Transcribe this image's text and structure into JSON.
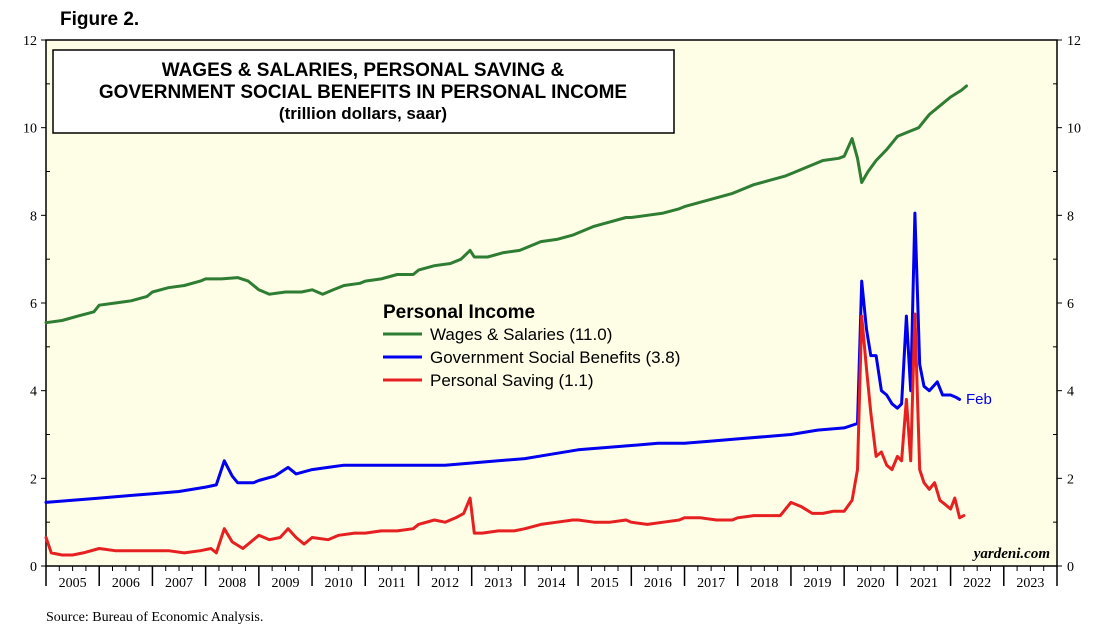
{
  "figure_label": "Figure 2.",
  "source": "Source: Bureau of Economic Analysis.",
  "watermark": "yardeni.com",
  "chart_data": {
    "type": "line",
    "title_lines": [
      "WAGES & SALARIES, PERSONAL SAVING &",
      "GOVERNMENT SOCIAL BENEFITS IN PERSONAL INCOME"
    ],
    "subtitle": "(trillion dollars, saar)",
    "legend_title": "Personal Income",
    "legend_position": "center",
    "grid": false,
    "background": "#fefde6",
    "xlim": [
      2005.0,
      2024.0
    ],
    "ylim": [
      0,
      12
    ],
    "y_ticks": [
      0,
      2,
      4,
      6,
      8,
      10,
      12
    ],
    "y_tick_labels": [
      "0",
      "2",
      "4",
      "6",
      "8",
      "10",
      "12"
    ],
    "x_year_labels": [
      "2005",
      "2006",
      "2007",
      "2008",
      "2009",
      "2010",
      "2011",
      "2012",
      "2013",
      "2014",
      "2015",
      "2016",
      "2017",
      "2018",
      "2019",
      "2020",
      "2021",
      "2022",
      "2023"
    ],
    "end_annotation": "Feb",
    "series": [
      {
        "name": "Wages & Salaries (11.0)",
        "color": "#2e7d32",
        "points": [
          [
            2005.0,
            5.55
          ],
          [
            2005.3,
            5.6
          ],
          [
            2005.6,
            5.7
          ],
          [
            2005.9,
            5.8
          ],
          [
            2006.0,
            5.95
          ],
          [
            2006.3,
            6.0
          ],
          [
            2006.6,
            6.05
          ],
          [
            2006.9,
            6.15
          ],
          [
            2007.0,
            6.25
          ],
          [
            2007.3,
            6.35
          ],
          [
            2007.6,
            6.4
          ],
          [
            2007.9,
            6.5
          ],
          [
            2008.0,
            6.55
          ],
          [
            2008.3,
            6.55
          ],
          [
            2008.6,
            6.58
          ],
          [
            2008.8,
            6.5
          ],
          [
            2009.0,
            6.3
          ],
          [
            2009.2,
            6.2
          ],
          [
            2009.5,
            6.25
          ],
          [
            2009.8,
            6.25
          ],
          [
            2010.0,
            6.3
          ],
          [
            2010.2,
            6.2
          ],
          [
            2010.4,
            6.3
          ],
          [
            2010.6,
            6.4
          ],
          [
            2010.9,
            6.45
          ],
          [
            2011.0,
            6.5
          ],
          [
            2011.3,
            6.55
          ],
          [
            2011.6,
            6.65
          ],
          [
            2011.9,
            6.65
          ],
          [
            2012.0,
            6.75
          ],
          [
            2012.3,
            6.85
          ],
          [
            2012.6,
            6.9
          ],
          [
            2012.8,
            7.0
          ],
          [
            2012.97,
            7.2
          ],
          [
            2013.05,
            7.05
          ],
          [
            2013.3,
            7.05
          ],
          [
            2013.6,
            7.15
          ],
          [
            2013.9,
            7.2
          ],
          [
            2014.0,
            7.25
          ],
          [
            2014.3,
            7.4
          ],
          [
            2014.6,
            7.45
          ],
          [
            2014.9,
            7.55
          ],
          [
            2015.0,
            7.6
          ],
          [
            2015.3,
            7.75
          ],
          [
            2015.6,
            7.85
          ],
          [
            2015.9,
            7.95
          ],
          [
            2016.0,
            7.95
          ],
          [
            2016.3,
            8.0
          ],
          [
            2016.6,
            8.05
          ],
          [
            2016.9,
            8.15
          ],
          [
            2017.0,
            8.2
          ],
          [
            2017.3,
            8.3
          ],
          [
            2017.6,
            8.4
          ],
          [
            2017.9,
            8.5
          ],
          [
            2018.0,
            8.55
          ],
          [
            2018.3,
            8.7
          ],
          [
            2018.6,
            8.8
          ],
          [
            2018.9,
            8.9
          ],
          [
            2019.0,
            8.95
          ],
          [
            2019.3,
            9.1
          ],
          [
            2019.6,
            9.25
          ],
          [
            2019.9,
            9.3
          ],
          [
            2020.0,
            9.35
          ],
          [
            2020.15,
            9.75
          ],
          [
            2020.25,
            9.3
          ],
          [
            2020.33,
            8.75
          ],
          [
            2020.45,
            9.0
          ],
          [
            2020.6,
            9.25
          ],
          [
            2020.8,
            9.5
          ],
          [
            2021.0,
            9.8
          ],
          [
            2021.2,
            9.9
          ],
          [
            2021.4,
            10.0
          ],
          [
            2021.6,
            10.3
          ],
          [
            2021.8,
            10.5
          ],
          [
            2022.0,
            10.7
          ],
          [
            2022.2,
            10.85
          ],
          [
            2022.3,
            10.95
          ]
        ]
      },
      {
        "name": "Government Social Benefits (3.8)",
        "color": "#0000ee",
        "points": [
          [
            2005.0,
            1.45
          ],
          [
            2005.5,
            1.5
          ],
          [
            2006.0,
            1.55
          ],
          [
            2006.5,
            1.6
          ],
          [
            2007.0,
            1.65
          ],
          [
            2007.5,
            1.7
          ],
          [
            2008.0,
            1.8
          ],
          [
            2008.2,
            1.85
          ],
          [
            2008.35,
            2.4
          ],
          [
            2008.5,
            2.05
          ],
          [
            2008.6,
            1.9
          ],
          [
            2008.9,
            1.9
          ],
          [
            2009.0,
            1.95
          ],
          [
            2009.3,
            2.05
          ],
          [
            2009.55,
            2.25
          ],
          [
            2009.7,
            2.1
          ],
          [
            2010.0,
            2.2
          ],
          [
            2010.3,
            2.25
          ],
          [
            2010.6,
            2.3
          ],
          [
            2011.0,
            2.3
          ],
          [
            2011.5,
            2.3
          ],
          [
            2012.0,
            2.3
          ],
          [
            2012.5,
            2.3
          ],
          [
            2013.0,
            2.35
          ],
          [
            2013.5,
            2.4
          ],
          [
            2014.0,
            2.45
          ],
          [
            2014.5,
            2.55
          ],
          [
            2015.0,
            2.65
          ],
          [
            2015.5,
            2.7
          ],
          [
            2016.0,
            2.75
          ],
          [
            2016.5,
            2.8
          ],
          [
            2017.0,
            2.8
          ],
          [
            2017.5,
            2.85
          ],
          [
            2018.0,
            2.9
          ],
          [
            2018.5,
            2.95
          ],
          [
            2019.0,
            3.0
          ],
          [
            2019.5,
            3.1
          ],
          [
            2020.0,
            3.15
          ],
          [
            2020.25,
            3.25
          ],
          [
            2020.33,
            6.5
          ],
          [
            2020.42,
            5.4
          ],
          [
            2020.5,
            4.8
          ],
          [
            2020.6,
            4.8
          ],
          [
            2020.7,
            4.0
          ],
          [
            2020.8,
            3.9
          ],
          [
            2020.9,
            3.7
          ],
          [
            2021.0,
            3.6
          ],
          [
            2021.08,
            3.7
          ],
          [
            2021.17,
            5.7
          ],
          [
            2021.25,
            4.0
          ],
          [
            2021.33,
            8.05
          ],
          [
            2021.42,
            4.6
          ],
          [
            2021.5,
            4.1
          ],
          [
            2021.6,
            4.0
          ],
          [
            2021.75,
            4.2
          ],
          [
            2021.85,
            3.9
          ],
          [
            2022.0,
            3.9
          ],
          [
            2022.1,
            3.85
          ],
          [
            2022.17,
            3.8
          ]
        ]
      },
      {
        "name": "Personal Saving (1.1)",
        "color": "#e62020",
        "points": [
          [
            2005.0,
            0.65
          ],
          [
            2005.1,
            0.3
          ],
          [
            2005.3,
            0.25
          ],
          [
            2005.5,
            0.25
          ],
          [
            2005.7,
            0.3
          ],
          [
            2006.0,
            0.4
          ],
          [
            2006.3,
            0.35
          ],
          [
            2006.6,
            0.35
          ],
          [
            2007.0,
            0.35
          ],
          [
            2007.3,
            0.35
          ],
          [
            2007.6,
            0.3
          ],
          [
            2007.9,
            0.35
          ],
          [
            2008.1,
            0.4
          ],
          [
            2008.2,
            0.3
          ],
          [
            2008.35,
            0.85
          ],
          [
            2008.5,
            0.55
          ],
          [
            2008.7,
            0.4
          ],
          [
            2009.0,
            0.7
          ],
          [
            2009.2,
            0.6
          ],
          [
            2009.4,
            0.65
          ],
          [
            2009.55,
            0.85
          ],
          [
            2009.7,
            0.65
          ],
          [
            2009.85,
            0.5
          ],
          [
            2010.0,
            0.65
          ],
          [
            2010.3,
            0.6
          ],
          [
            2010.5,
            0.7
          ],
          [
            2010.8,
            0.75
          ],
          [
            2011.0,
            0.75
          ],
          [
            2011.3,
            0.8
          ],
          [
            2011.6,
            0.8
          ],
          [
            2011.9,
            0.85
          ],
          [
            2012.0,
            0.95
          ],
          [
            2012.3,
            1.05
          ],
          [
            2012.5,
            1.0
          ],
          [
            2012.7,
            1.1
          ],
          [
            2012.85,
            1.2
          ],
          [
            2012.97,
            1.55
          ],
          [
            2013.05,
            0.75
          ],
          [
            2013.2,
            0.75
          ],
          [
            2013.5,
            0.8
          ],
          [
            2013.8,
            0.8
          ],
          [
            2014.0,
            0.85
          ],
          [
            2014.3,
            0.95
          ],
          [
            2014.6,
            1.0
          ],
          [
            2014.9,
            1.05
          ],
          [
            2015.0,
            1.05
          ],
          [
            2015.3,
            1.0
          ],
          [
            2015.6,
            1.0
          ],
          [
            2015.9,
            1.05
          ],
          [
            2016.0,
            1.0
          ],
          [
            2016.3,
            0.95
          ],
          [
            2016.6,
            1.0
          ],
          [
            2016.9,
            1.05
          ],
          [
            2017.0,
            1.1
          ],
          [
            2017.3,
            1.1
          ],
          [
            2017.6,
            1.05
          ],
          [
            2017.9,
            1.05
          ],
          [
            2018.0,
            1.1
          ],
          [
            2018.3,
            1.15
          ],
          [
            2018.6,
            1.15
          ],
          [
            2018.8,
            1.15
          ],
          [
            2019.0,
            1.45
          ],
          [
            2019.2,
            1.35
          ],
          [
            2019.4,
            1.2
          ],
          [
            2019.6,
            1.2
          ],
          [
            2019.8,
            1.25
          ],
          [
            2020.0,
            1.25
          ],
          [
            2020.15,
            1.5
          ],
          [
            2020.25,
            2.2
          ],
          [
            2020.33,
            5.7
          ],
          [
            2020.42,
            4.5
          ],
          [
            2020.5,
            3.5
          ],
          [
            2020.6,
            2.5
          ],
          [
            2020.7,
            2.6
          ],
          [
            2020.8,
            2.3
          ],
          [
            2020.9,
            2.2
          ],
          [
            2021.0,
            2.5
          ],
          [
            2021.08,
            2.4
          ],
          [
            2021.17,
            3.8
          ],
          [
            2021.25,
            2.4
          ],
          [
            2021.33,
            5.75
          ],
          [
            2021.42,
            2.2
          ],
          [
            2021.5,
            1.9
          ],
          [
            2021.6,
            1.75
          ],
          [
            2021.7,
            1.9
          ],
          [
            2021.8,
            1.5
          ],
          [
            2021.9,
            1.4
          ],
          [
            2022.0,
            1.3
          ],
          [
            2022.08,
            1.55
          ],
          [
            2022.17,
            1.1
          ],
          [
            2022.25,
            1.15
          ]
        ]
      }
    ]
  }
}
